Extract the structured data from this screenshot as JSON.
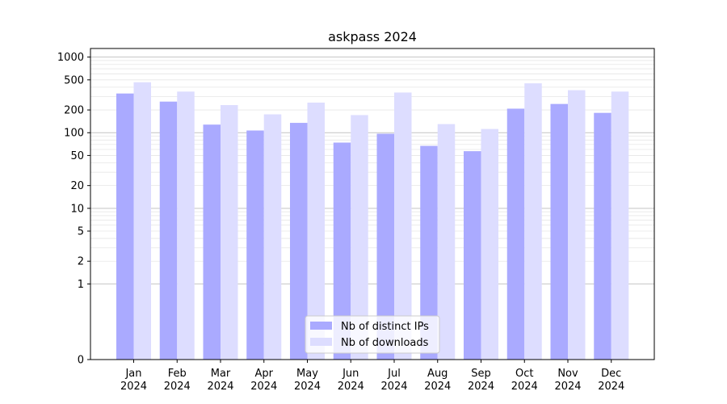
{
  "chart_data": {
    "type": "bar",
    "title": "askpass 2024",
    "xlabel": "",
    "ylabel": "",
    "yscale": "symlog",
    "ylim": [
      0,
      1300
    ],
    "yticks": [
      0,
      1,
      2,
      5,
      10,
      20,
      50,
      100,
      200,
      500,
      1000
    ],
    "ytick_labels": [
      "0",
      "1",
      "2",
      "5",
      "10",
      "20",
      "50",
      "100",
      "200",
      "500",
      "1000"
    ],
    "grid": true,
    "legend_position": "bottom-center",
    "categories": [
      "Jan\n2024",
      "Feb\n2024",
      "Mar\n2024",
      "Apr\n2024",
      "May\n2024",
      "Jun\n2024",
      "Jul\n2024",
      "Aug\n2024",
      "Sep\n2024",
      "Oct\n2024",
      "Nov\n2024",
      "Dec\n2024"
    ],
    "series": [
      {
        "name": "Nb of distinct IPs",
        "color": "#aaaaff",
        "values": [
          330,
          258,
          128,
          107,
          135,
          74,
          97,
          67,
          57,
          208,
          240,
          183
        ]
      },
      {
        "name": "Nb of downloads",
        "color": "#ddddff",
        "values": [
          465,
          350,
          232,
          175,
          250,
          171,
          340,
          130,
          112,
          450,
          365,
          350
        ]
      }
    ]
  }
}
